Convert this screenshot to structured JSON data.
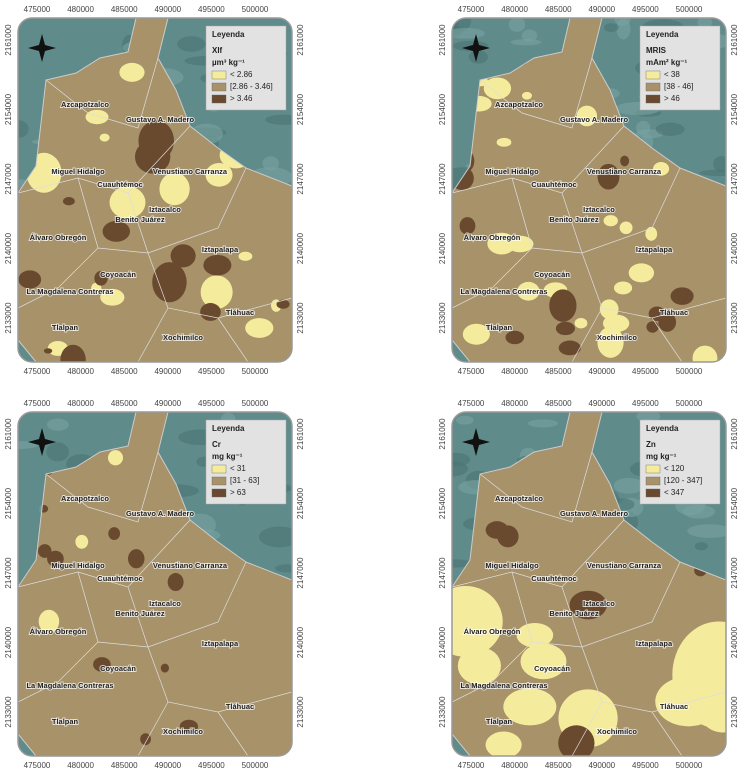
{
  "xticks": [
    475000,
    480000,
    485000,
    490000,
    495000,
    500000
  ],
  "yticks": [
    2161000,
    2154000,
    2147000,
    2140000,
    2133000
  ],
  "legend_heading": "Leyenda",
  "districts": [
    "Azcapotzalco",
    "Gustavo A. Madero",
    "Miguel Hidalgo",
    "Cuauhtémoc",
    "Venustiano Carranza",
    "Iztacalco",
    "Benito Juárez",
    "Álvaro Obregón",
    "Iztapalapa",
    "Coyoacán",
    "La Magdalena Contreras",
    "Tláhuac",
    "Tlalpan",
    "Xochimilco"
  ],
  "class_colors": [
    "#f4ec9c",
    "#a8926a",
    "#6a4a2f"
  ],
  "panels": [
    {
      "title": "Xlf",
      "unit": "µm³ kg⁻¹",
      "classes": [
        "< 2.86",
        "[2.86 - 3.46]",
        "> 3.46"
      ]
    },
    {
      "title": "MRIS",
      "unit": "mAm² kg⁻¹",
      "classes": [
        "< 38",
        "[38 - 46]",
        "> 46"
      ]
    },
    {
      "title": "Cr",
      "unit": "mg kg⁻¹",
      "classes": [
        "< 31",
        "[31 - 63]",
        "> 63"
      ]
    },
    {
      "title": "Zn",
      "unit": "mg kg⁻¹",
      "classes": [
        "< 120",
        "[120 - 347]",
        "< 347"
      ]
    }
  ]
}
